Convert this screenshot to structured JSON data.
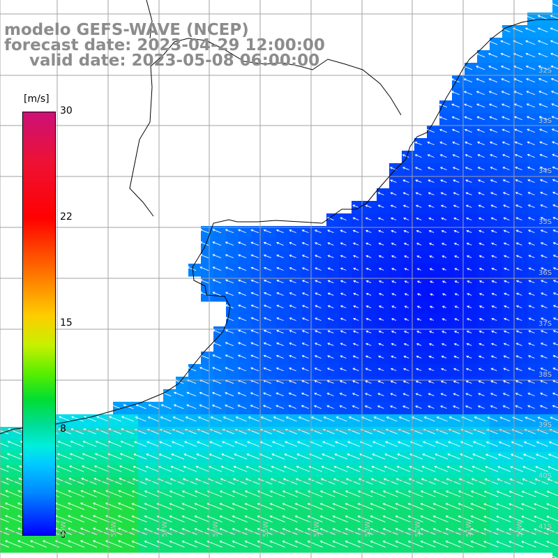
{
  "title": {
    "line1": "modelo GEFS-WAVE (NCEP)",
    "line2": "forecast date: 2023-04-29 12:00:00",
    "line3": "valid date: 2023-05-08 06:00:00"
  },
  "legend": {
    "unit": "[m/s]",
    "ticks": [
      "30",
      "22",
      "15",
      "8",
      "0"
    ],
    "tick_values": [
      30,
      22,
      15,
      8,
      0
    ],
    "range": [
      0,
      30
    ],
    "colors": [
      "#cc1177",
      "#ff0000",
      "#ff6a00",
      "#ffcc00",
      "#55ee00",
      "#00dd99",
      "#00ccff",
      "#0088ff",
      "#0000ff"
    ]
  },
  "map": {
    "lat_labels": [
      "32S",
      "33S",
      "34S",
      "35S",
      "36S",
      "37S",
      "38S",
      "39S",
      "40S",
      "41S"
    ],
    "lon_labels": [
      "59W",
      "58W",
      "57W",
      "56W",
      "55W",
      "54W",
      "53W",
      "52W",
      "51W",
      "50W"
    ],
    "land_color": "#ffffff",
    "grid_color": "#a0a0a0",
    "arrow_color": "#ffffff",
    "arrow_direction": "toward-west-northwest"
  }
}
